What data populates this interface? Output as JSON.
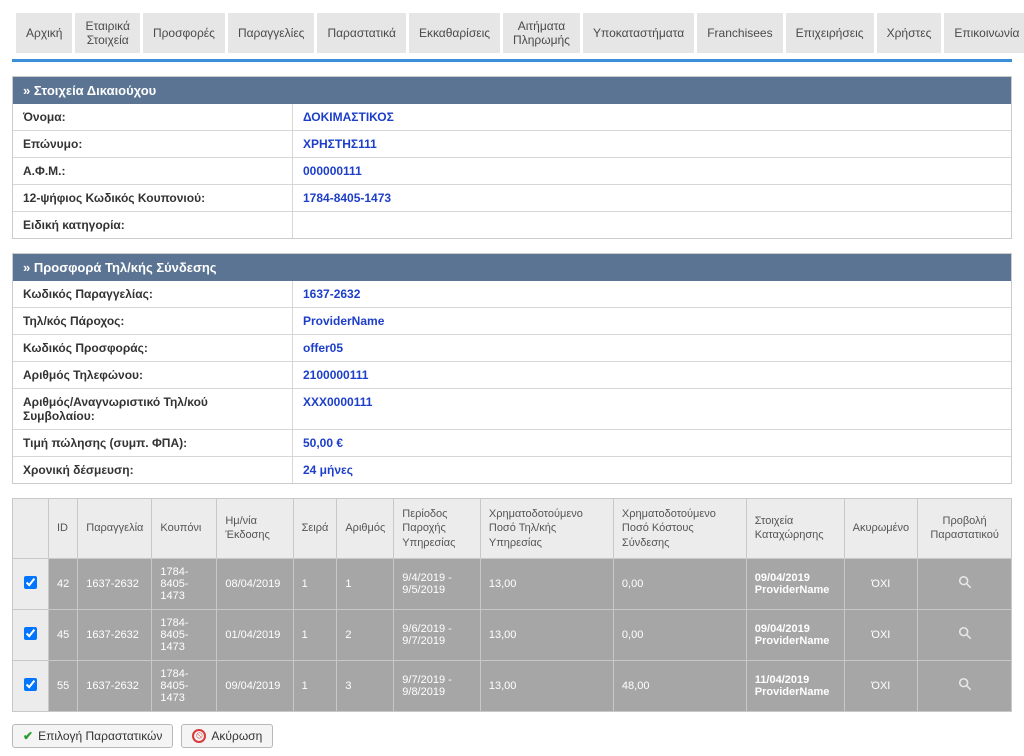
{
  "nav": {
    "items": [
      "Αρχική",
      "Εταιρικά Στοιχεία",
      "Προσφορές",
      "Παραγγελίες",
      "Παραστατικά",
      "Εκκαθαρίσεις",
      "Αιτήματα Πληρωμής",
      "Υποκαταστήματα",
      "Franchisees",
      "Επιχειρήσεις",
      "Χρήστες",
      "Επικοινωνία"
    ]
  },
  "colors": {
    "nav_border": "#3b8ed8",
    "panel_header_bg": "#5b7493",
    "value_text": "#1c3ec9",
    "grid_row_bg": "#a6a6a6"
  },
  "beneficiary_panel": {
    "title": "» Στοιχεία Δικαιούχου",
    "rows": [
      {
        "label": "Όνομα:",
        "value": "ΔΟΚΙΜΑΣΤΙΚΟΣ"
      },
      {
        "label": "Επώνυμο:",
        "value": "ΧΡΗΣΤΗΣ111"
      },
      {
        "label": "Α.Φ.Μ.:",
        "value": "000000111"
      },
      {
        "label": "12-ψήφιος Κωδικός Κουπονιού:",
        "value": "1784-8405-1473"
      },
      {
        "label": "Ειδική κατηγορία:",
        "value": ""
      }
    ]
  },
  "offer_panel": {
    "title": "» Προσφορά Τηλ/κής Σύνδεσης",
    "rows": [
      {
        "label": "Κωδικός Παραγγελίας:",
        "value": "1637-2632"
      },
      {
        "label": "Τηλ/κός Πάροχος:",
        "value": "ProviderName"
      },
      {
        "label": "Κωδικός Προσφοράς:",
        "value": "offer05"
      },
      {
        "label": "Αριθμός Τηλεφώνου:",
        "value": "2100000111"
      },
      {
        "label": "Αριθμός/Αναγνωριστικό Τηλ/κού Συμβολαίου:",
        "value": "XXX0000111"
      },
      {
        "label": "Τιμή πώλησης (συμπ. ΦΠΑ):",
        "value": "50,00 €"
      },
      {
        "label": "Χρονική δέσμευση:",
        "value": "24 μήνες"
      }
    ]
  },
  "grid": {
    "columns": [
      "",
      "ID",
      "Παραγγελία",
      "Κουπόνι",
      "Ημ/νία Έκδοσης",
      "Σειρά",
      "Αριθμός",
      "Περίοδος Παροχής Υπηρεσίας",
      "Χρηματοδοτούμενο Ποσό Τηλ/κής Υπηρεσίας",
      "Χρηματοδοτούμενο Ποσό Κόστους Σύνδεσης",
      "Στοιχεία Καταχώρησης",
      "Ακυρωμένο",
      "Προβολή Παραστατικού"
    ],
    "rows": [
      {
        "checked": true,
        "id": "42",
        "order": "1637-2632",
        "coupon": "1784-8405-1473",
        "issue_date": "08/04/2019",
        "series": "1",
        "number": "1",
        "period": "9/4/2019 - 9/5/2019",
        "amount_service": "13,00",
        "amount_connection": "0,00",
        "entry_date": "09/04/2019",
        "entry_provider": "ProviderName",
        "cancelled": "ΌΧΙ"
      },
      {
        "checked": true,
        "id": "45",
        "order": "1637-2632",
        "coupon": "1784-8405-1473",
        "issue_date": "01/04/2019",
        "series": "1",
        "number": "2",
        "period": "9/6/2019 - 9/7/2019",
        "amount_service": "13,00",
        "amount_connection": "0,00",
        "entry_date": "09/04/2019",
        "entry_provider": "ProviderName",
        "cancelled": "ΌΧΙ"
      },
      {
        "checked": true,
        "id": "55",
        "order": "1637-2632",
        "coupon": "1784-8405-1473",
        "issue_date": "09/04/2019",
        "series": "1",
        "number": "3",
        "period": "9/7/2019 - 9/8/2019",
        "amount_service": "13,00",
        "amount_connection": "48,00",
        "entry_date": "11/04/2019",
        "entry_provider": "ProviderName",
        "cancelled": "ΌΧΙ"
      }
    ]
  },
  "actions": {
    "select_label": "Επιλογή Παραστατικών",
    "cancel_label": "Ακύρωση"
  }
}
